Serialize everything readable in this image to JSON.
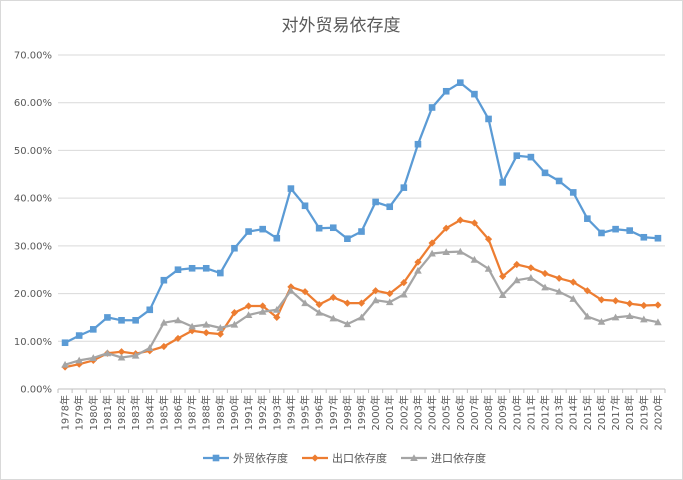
{
  "chart_data": {
    "type": "line",
    "title": "对外贸易依存度",
    "ylim": [
      0,
      70
    ],
    "ytick_labels": [
      "0.00%",
      "10.00%",
      "20.00%",
      "30.00%",
      "40.00%",
      "50.00%",
      "60.00%",
      "70.00%"
    ],
    "grid": true,
    "legend_position": "bottom",
    "categories": [
      "1978年",
      "1979年",
      "1980年",
      "1981年",
      "1982年",
      "1983年",
      "1984年",
      "1985年",
      "1986年",
      "1987年",
      "1988年",
      "1989年",
      "1990年",
      "1991年",
      "1992年",
      "1993年",
      "1994年",
      "1995年",
      "1996年",
      "1997年",
      "1998年",
      "1999年",
      "2000年",
      "2001年",
      "2002年",
      "2003年",
      "2004年",
      "2005年",
      "2006年",
      "2007年",
      "2008年",
      "2009年",
      "2010年",
      "2011年",
      "2012年",
      "2013年",
      "2014年",
      "2015年",
      "2016年",
      "2017年",
      "2018年",
      "2019年",
      "2020年"
    ],
    "series": [
      {
        "name": "外贸依存度",
        "color": "#5b9bd5",
        "marker": "square",
        "values": [
          9.7,
          11.2,
          12.5,
          15.0,
          14.4,
          14.4,
          16.6,
          22.8,
          25.0,
          25.3,
          25.3,
          24.3,
          29.5,
          33.0,
          33.5,
          31.6,
          42.0,
          38.4,
          33.7,
          33.8,
          31.5,
          33.0,
          39.2,
          38.2,
          42.2,
          51.3,
          59.0,
          62.4,
          64.2,
          61.8,
          56.6,
          43.3,
          48.9,
          48.6,
          45.3,
          43.6,
          41.2,
          35.7,
          32.7,
          33.5,
          33.2,
          31.8,
          31.6
        ]
      },
      {
        "name": "出口依存度",
        "color": "#ed7d31",
        "marker": "diamond",
        "values": [
          4.6,
          5.2,
          6.0,
          7.5,
          7.8,
          7.4,
          8.0,
          8.9,
          10.6,
          12.2,
          11.8,
          11.5,
          16.0,
          17.4,
          17.4,
          15.0,
          21.4,
          20.4,
          17.7,
          19.2,
          18.0,
          18.0,
          20.6,
          20.0,
          22.3,
          26.6,
          30.6,
          33.7,
          35.4,
          34.8,
          31.4,
          23.6,
          26.1,
          25.4,
          24.2,
          23.2,
          22.4,
          20.6,
          18.7,
          18.5,
          17.9,
          17.5,
          17.6
        ]
      },
      {
        "name": "进口依存度",
        "color": "#a5a5a5",
        "marker": "triangle",
        "values": [
          5.1,
          6.0,
          6.5,
          7.5,
          6.6,
          7.0,
          8.6,
          13.9,
          14.4,
          13.1,
          13.5,
          12.8,
          13.5,
          15.5,
          16.2,
          16.6,
          20.6,
          18.0,
          16.0,
          14.8,
          13.6,
          15.0,
          18.6,
          18.2,
          19.8,
          24.8,
          28.4,
          28.7,
          28.8,
          27.1,
          25.2,
          19.7,
          22.8,
          23.3,
          21.3,
          20.4,
          18.9,
          15.2,
          14.1,
          15.0,
          15.3,
          14.6,
          14.0
        ]
      }
    ]
  }
}
